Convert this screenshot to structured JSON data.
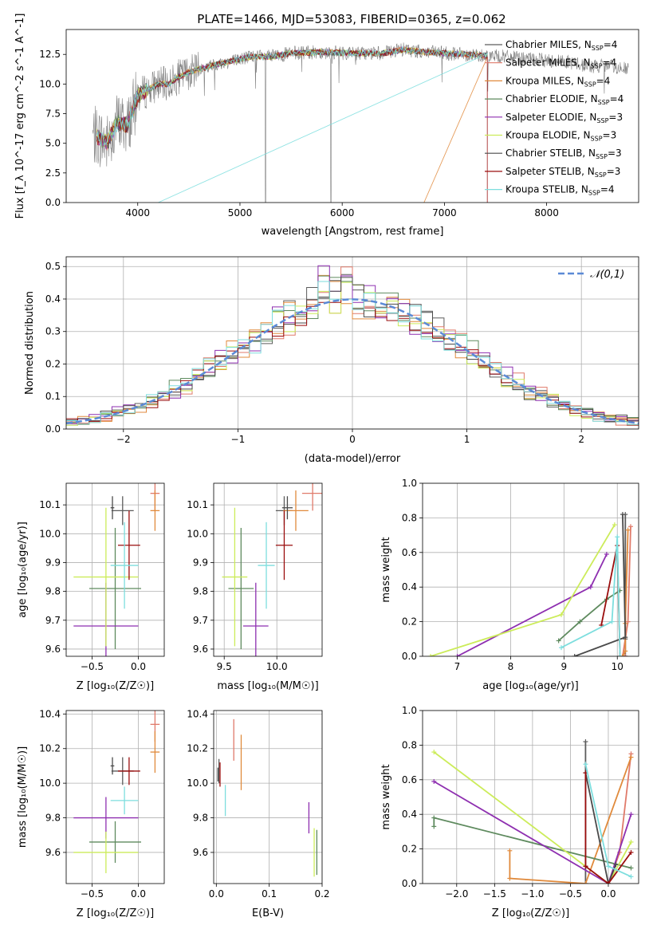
{
  "title": "PLATE=1466, MJD=53083, FIBERID=0365, z=0.062",
  "series_names": [
    "Chabrier MILES",
    "Salpeter MILES",
    "Kroupa MILES",
    "Chabrier ELODIE",
    "Salpeter ELODIE",
    "Kroupa ELODIE",
    "Chabrier STELIB",
    "Salpeter STELIB",
    "Kroupa STELIB"
  ],
  "series_colors": [
    "#5c5c5c",
    "#e07a6a",
    "#e08a3c",
    "#5e8a5e",
    "#8e2fb0",
    "#ccec5a",
    "#4a4a4a",
    "#9a0d0d",
    "#7ddede"
  ],
  "nssp": [
    4,
    4,
    4,
    4,
    3,
    3,
    3,
    3,
    4
  ],
  "chart_data": [
    {
      "type": "line",
      "id": "spectrum",
      "xlabel": "wavelength [Angstrom, rest frame]",
      "ylabel": "Flux [f_λ 10^-17 erg cm^-2 s^-1 A^-1]",
      "xlim": [
        3300,
        8900
      ],
      "ylim": [
        0,
        14.6
      ],
      "xticks": [
        4000,
        5000,
        6000,
        7000,
        8000
      ],
      "yticks": [
        0.0,
        2.5,
        5.0,
        7.5,
        10.0,
        12.5
      ],
      "grid": false,
      "legend": "right",
      "continuum": [
        [
          3600,
          5.6
        ],
        [
          3700,
          5.0
        ],
        [
          3800,
          6.8
        ],
        [
          3900,
          6.5
        ],
        [
          4000,
          9.0
        ],
        [
          4100,
          9.5
        ],
        [
          4200,
          10.0
        ],
        [
          4300,
          10.0
        ],
        [
          4400,
          10.6
        ],
        [
          4500,
          11.0
        ],
        [
          4700,
          11.5
        ],
        [
          4900,
          11.9
        ],
        [
          5100,
          12.3
        ],
        [
          5300,
          12.3
        ],
        [
          5500,
          12.6
        ],
        [
          5800,
          12.7
        ],
        [
          6100,
          12.6
        ],
        [
          6400,
          12.6
        ],
        [
          6600,
          12.9
        ],
        [
          6800,
          12.7
        ],
        [
          7000,
          12.6
        ],
        [
          7200,
          12.5
        ],
        [
          7400,
          12.4
        ],
        [
          7600,
          12.3
        ],
        [
          7800,
          12.1
        ],
        [
          8000,
          12.0
        ],
        [
          8200,
          11.9
        ],
        [
          8400,
          11.5
        ],
        [
          8600,
          11.5
        ],
        [
          8800,
          11.3
        ]
      ],
      "data_range": [
        3560,
        8800
      ],
      "model_range": [
        3600,
        7420
      ]
    },
    {
      "type": "step",
      "id": "residuals",
      "xlabel": "(data-model)/error",
      "ylabel": "Normed distribution",
      "xlim": [
        -2.5,
        2.5
      ],
      "ylim": [
        0,
        0.53
      ],
      "xticks": [
        -2,
        -1,
        0,
        1,
        2
      ],
      "yticks": [
        0.0,
        0.1,
        0.2,
        0.3,
        0.4,
        0.5
      ],
      "grid": true,
      "legend": "top-right",
      "reference_label": "𝒩(0,1)",
      "bin_width": 0.1
    },
    {
      "type": "errorbar",
      "id": "age_vs_Z",
      "xlabel": "Z [log10(Z/Z☉)]",
      "ylabel": "age [log10(age/yr)]",
      "xlim": [
        -0.78,
        0.28
      ],
      "ylim": [
        9.575,
        10.175
      ],
      "xticks": [
        -0.5,
        0.0
      ],
      "yticks": [
        9.6,
        9.7,
        9.8,
        9.9,
        10.0,
        10.1
      ],
      "grid": true,
      "points": [
        {
          "x": -0.17,
          "xerr": 0.12,
          "y": 10.08,
          "yerr": 0.05
        },
        {
          "x": 0.18,
          "xerr": 0.05,
          "y": 10.14,
          "yerr": 0.06
        },
        {
          "x": 0.18,
          "xerr": 0.05,
          "y": 10.08,
          "yerr": 0.07
        },
        {
          "x": -0.25,
          "xerr": 0.28,
          "y": 9.81,
          "yerr": 0.21
        },
        {
          "x": -0.35,
          "xerr": 0.35,
          "y": 9.68,
          "yerr": 0.15
        },
        {
          "x": -0.35,
          "xerr": 0.35,
          "y": 9.85,
          "yerr": 0.24
        },
        {
          "x": -0.28,
          "xerr": 0.02,
          "y": 10.09,
          "yerr": 0.04
        },
        {
          "x": -0.1,
          "xerr": 0.12,
          "y": 9.96,
          "yerr": 0.12
        },
        {
          "x": -0.15,
          "xerr": 0.15,
          "y": 9.89,
          "yerr": 0.15
        }
      ]
    },
    {
      "type": "errorbar",
      "id": "age_vs_mass",
      "xlabel": "mass [log10(M/M☉)]",
      "ylabel": "",
      "xlim": [
        9.4,
        10.43
      ],
      "ylim": [
        9.575,
        10.175
      ],
      "xticks": [
        9.5,
        10.0
      ],
      "yticks": [
        9.6,
        9.7,
        9.8,
        9.9,
        10.0,
        10.1
      ],
      "grid": true,
      "points": [
        {
          "x": 10.07,
          "xerr": 0.08,
          "y": 10.08,
          "yerr": 0.05
        },
        {
          "x": 10.34,
          "xerr": 0.1,
          "y": 10.14,
          "yerr": 0.06
        },
        {
          "x": 10.18,
          "xerr": 0.12,
          "y": 10.08,
          "yerr": 0.07
        },
        {
          "x": 9.66,
          "xerr": 0.12,
          "y": 9.81,
          "yerr": 0.21
        },
        {
          "x": 9.8,
          "xerr": 0.12,
          "y": 9.68,
          "yerr": 0.15
        },
        {
          "x": 9.6,
          "xerr": 0.12,
          "y": 9.85,
          "yerr": 0.24
        },
        {
          "x": 10.1,
          "xerr": 0.05,
          "y": 10.09,
          "yerr": 0.04
        },
        {
          "x": 10.07,
          "xerr": 0.08,
          "y": 9.96,
          "yerr": 0.12
        },
        {
          "x": 9.9,
          "xerr": 0.08,
          "y": 9.89,
          "yerr": 0.15
        }
      ]
    },
    {
      "type": "line",
      "id": "mass_weight_vs_age",
      "xlabel": "age [log10(age/yr)]",
      "ylabel": "mass weight",
      "xlim": [
        6.35,
        10.4
      ],
      "ylim": [
        0,
        1
      ],
      "xticks": [
        7,
        8,
        9,
        10
      ],
      "yticks": [
        0.0,
        0.2,
        0.4,
        0.6,
        0.8,
        1.0
      ],
      "grid": true,
      "series": [
        {
          "x": [
            10.15,
            10.15,
            10.15,
            10.15
          ],
          "y": [
            0.0,
            0.82,
            0.1,
            0.0
          ]
        },
        {
          "x": [
            10.25,
            10.2,
            10.1,
            10.15
          ],
          "y": [
            0.75,
            0.2,
            0.0,
            0.0
          ]
        },
        {
          "x": [
            10.2,
            10.15,
            10.15,
            10.1
          ],
          "y": [
            0.73,
            0.19,
            0.03,
            0.0
          ]
        },
        {
          "x": [
            8.9,
            9.3,
            9.8,
            10.05
          ],
          "y": [
            0.09,
            0.2,
            0.33,
            0.38
          ]
        },
        {
          "x": [
            7.0,
            9.5,
            9.8
          ],
          "y": [
            0.0,
            0.4,
            0.59
          ]
        },
        {
          "x": [
            6.5,
            8.95,
            9.95
          ],
          "y": [
            0.0,
            0.24,
            0.76
          ]
        },
        {
          "x": [
            9.2,
            10.15,
            10.1
          ],
          "y": [
            0.0,
            0.11,
            0.82
          ]
        },
        {
          "x": [
            9.7,
            10.0,
            10.05
          ],
          "y": [
            0.18,
            0.64,
            0.0
          ]
        },
        {
          "x": [
            8.95,
            9.9,
            10.0,
            10.05
          ],
          "y": [
            0.05,
            0.2,
            0.69,
            0.0
          ]
        }
      ]
    },
    {
      "type": "errorbar",
      "id": "mass_vs_Z",
      "xlabel": "Z [log10(Z/Z☉)]",
      "ylabel": "mass [log10(M/M☉)]",
      "xlim": [
        -0.78,
        0.28
      ],
      "ylim": [
        9.42,
        10.42
      ],
      "xticks": [
        -0.5,
        0.0
      ],
      "yticks": [
        9.6,
        9.8,
        10.0,
        10.2,
        10.4
      ],
      "grid": true,
      "points": [
        {
          "x": -0.17,
          "xerr": 0.12,
          "y": 10.07,
          "yerr": 0.08
        },
        {
          "x": 0.18,
          "xerr": 0.05,
          "y": 10.34,
          "yerr": 0.1
        },
        {
          "x": 0.18,
          "xerr": 0.05,
          "y": 10.18,
          "yerr": 0.12
        },
        {
          "x": -0.25,
          "xerr": 0.28,
          "y": 9.66,
          "yerr": 0.12
        },
        {
          "x": -0.35,
          "xerr": 0.35,
          "y": 9.8,
          "yerr": 0.12
        },
        {
          "x": -0.35,
          "xerr": 0.35,
          "y": 9.6,
          "yerr": 0.12
        },
        {
          "x": -0.28,
          "xerr": 0.02,
          "y": 10.1,
          "yerr": 0.05
        },
        {
          "x": -0.1,
          "xerr": 0.12,
          "y": 10.07,
          "yerr": 0.08
        },
        {
          "x": -0.15,
          "xerr": 0.15,
          "y": 9.9,
          "yerr": 0.08
        }
      ]
    },
    {
      "type": "errorbar",
      "id": "mass_vs_EBV",
      "xlabel": "E(B-V)",
      "ylabel": "",
      "xlim": [
        -0.005,
        0.2
      ],
      "ylim": [
        9.42,
        10.42
      ],
      "xticks": [
        0.0,
        0.1,
        0.2
      ],
      "yticks": [
        9.6,
        9.8,
        10.0,
        10.2,
        10.4
      ],
      "grid": true,
      "points": [
        {
          "x": 0.005,
          "xerr": 0,
          "y": 10.07,
          "yerr": 0.07
        },
        {
          "x": 0.033,
          "xerr": 0,
          "y": 10.25,
          "yerr": 0.12
        },
        {
          "x": 0.047,
          "xerr": 0,
          "y": 10.12,
          "yerr": 0.16
        },
        {
          "x": 0.19,
          "xerr": 0,
          "y": 9.6,
          "yerr": 0.13
        },
        {
          "x": 0.175,
          "xerr": 0,
          "y": 9.8,
          "yerr": 0.09
        },
        {
          "x": 0.185,
          "xerr": 0,
          "y": 9.6,
          "yerr": 0.14
        },
        {
          "x": 0.003,
          "xerr": 0,
          "y": 10.05,
          "yerr": 0.04
        },
        {
          "x": 0.007,
          "xerr": 0,
          "y": 10.05,
          "yerr": 0.07
        },
        {
          "x": 0.017,
          "xerr": 0,
          "y": 9.9,
          "yerr": 0.09
        }
      ]
    },
    {
      "type": "line",
      "id": "mass_weight_vs_Z",
      "xlabel": "Z [log10(Z/Z☉)]",
      "ylabel": "mass weight",
      "xlim": [
        -2.45,
        0.4
      ],
      "ylim": [
        0,
        1
      ],
      "xticks": [
        -2.0,
        -1.5,
        -1.0,
        -0.5,
        0.0
      ],
      "yticks": [
        0.0,
        0.2,
        0.4,
        0.6,
        0.8,
        1.0
      ],
      "grid": true,
      "series": [
        {
          "x": [
            -0.3,
            -0.3,
            -0.3
          ],
          "y": [
            0.0,
            0.82,
            0.1
          ]
        },
        {
          "x": [
            0.0,
            0.15,
            0.3
          ],
          "y": [
            0.0,
            0.18,
            0.75
          ]
        },
        {
          "x": [
            -1.3,
            -1.3,
            -0.3,
            0.3
          ],
          "y": [
            0.19,
            0.03,
            0.0,
            0.73
          ]
        },
        {
          "x": [
            -2.3,
            -2.3,
            0.3
          ],
          "y": [
            0.33,
            0.38,
            0.09
          ]
        },
        {
          "x": [
            -2.3,
            0.0,
            0.3
          ],
          "y": [
            0.59,
            0.0,
            0.4
          ]
        },
        {
          "x": [
            -2.3,
            0.0,
            0.3
          ],
          "y": [
            0.76,
            0.0,
            0.24
          ]
        },
        {
          "x": [
            -0.3,
            0.0,
            0.1
          ],
          "y": [
            0.64,
            0.0,
            0.11
          ]
        },
        {
          "x": [
            -0.3,
            -0.3,
            0.0,
            0.3
          ],
          "y": [
            0.64,
            0.1,
            0.0,
            0.18
          ]
        },
        {
          "x": [
            -0.3,
            0.0,
            0.3
          ],
          "y": [
            0.69,
            0.1,
            0.04
          ]
        }
      ]
    }
  ]
}
